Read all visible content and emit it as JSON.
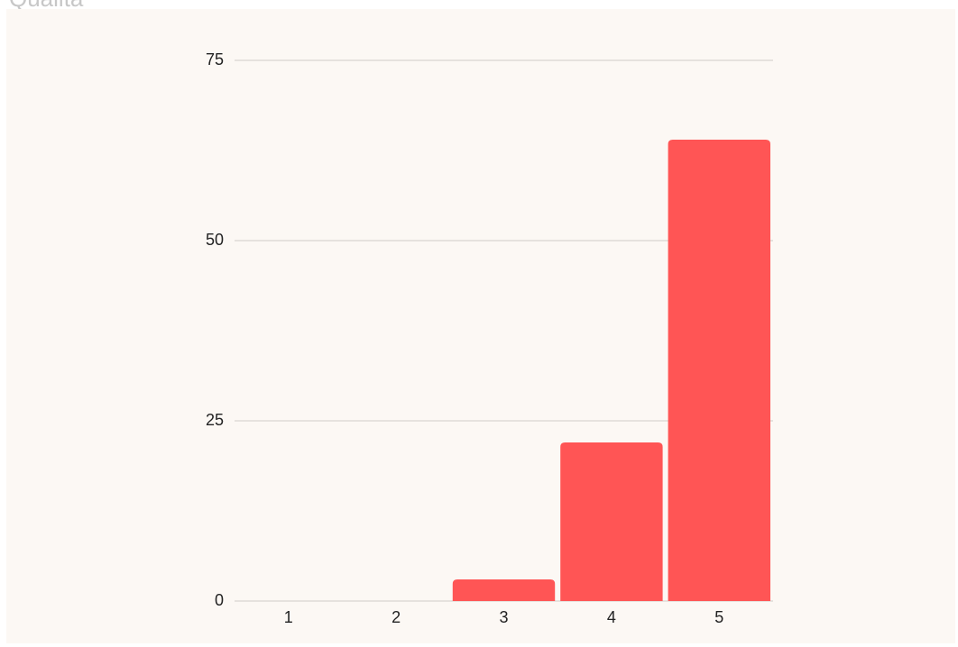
{
  "header": {
    "title": "Qualità"
  },
  "colors": {
    "bar": "#ff5555",
    "grid": "#dedad6",
    "panel_background": "#fcf8f4",
    "text": "#222222"
  },
  "chart_data": {
    "type": "bar",
    "categories": [
      "1",
      "2",
      "3",
      "4",
      "5"
    ],
    "values": [
      0,
      0,
      3,
      22,
      64
    ],
    "ylim": [
      0,
      75
    ],
    "yticks": [
      0,
      25,
      50,
      75
    ],
    "grid": true,
    "legend": "none"
  }
}
